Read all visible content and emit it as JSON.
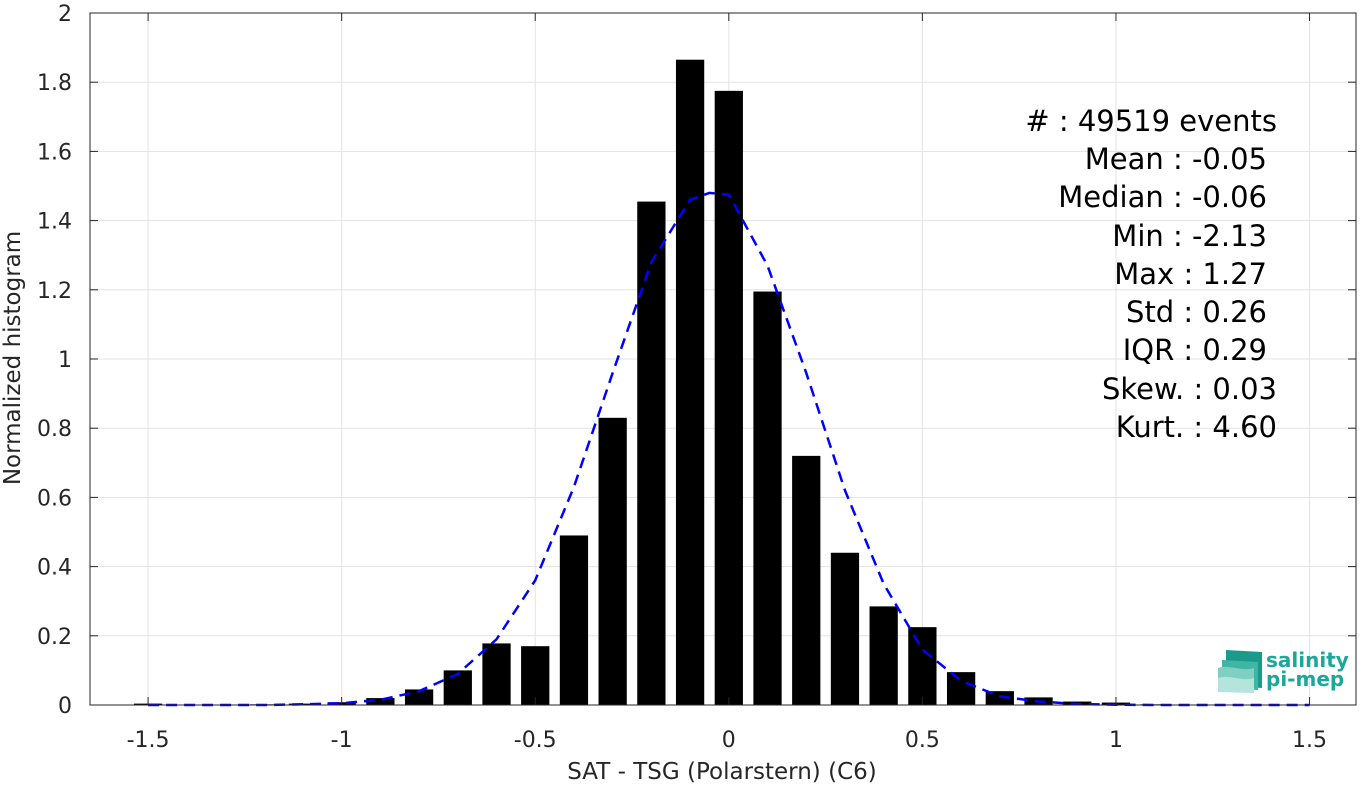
{
  "chart_data": {
    "type": "bar",
    "xlabel": "SAT - TSG (Polarstern) (C6)",
    "ylabel": "Normalized histogram",
    "xlim": [
      -1.65,
      1.62
    ],
    "ylim": [
      0,
      2
    ],
    "xticks": [
      -1.5,
      -1,
      -0.5,
      0,
      0.5,
      1,
      1.5
    ],
    "xtick_labels": [
      "-1.5",
      "-1",
      "-0.5",
      "0",
      "0.5",
      "1",
      "1.5"
    ],
    "yticks": [
      0,
      0.2,
      0.4,
      0.6,
      0.8,
      1,
      1.2,
      1.4,
      1.6,
      1.8,
      2
    ],
    "ytick_labels": [
      "0",
      "0.2",
      "0.4",
      "0.6",
      "0.8",
      "1",
      "1.2",
      "1.4",
      "1.6",
      "1.8",
      "2"
    ],
    "grid": true,
    "bar_width": 0.073,
    "bar_color": "#000000",
    "x": [
      -1.5,
      -1.4,
      -1.3,
      -1.2,
      -1.1,
      -1.0,
      -0.9,
      -0.8,
      -0.7,
      -0.6,
      -0.5,
      -0.4,
      -0.3,
      -0.2,
      -0.1,
      0.0,
      0.1,
      0.2,
      0.3,
      0.4,
      0.5,
      0.6,
      0.7,
      0.8,
      0.9,
      1.0,
      1.1,
      1.2,
      1.3,
      1.4,
      1.5
    ],
    "values": [
      0.004,
      0.0,
      0.0,
      0.002,
      0.004,
      0.008,
      0.02,
      0.045,
      0.1,
      0.178,
      0.17,
      0.49,
      0.83,
      1.455,
      1.865,
      1.775,
      1.195,
      0.72,
      0.44,
      0.285,
      0.225,
      0.095,
      0.04,
      0.022,
      0.01,
      0.007,
      0.002,
      0.0,
      0.0,
      0.0,
      0.0
    ],
    "fit_curve": {
      "color": "#0000ff",
      "style": "dashed",
      "x": [
        -1.5,
        -1.4,
        -1.3,
        -1.2,
        -1.1,
        -1.0,
        -0.9,
        -0.8,
        -0.7,
        -0.6,
        -0.5,
        -0.4,
        -0.3,
        -0.2,
        -0.1,
        -0.05,
        0.0,
        0.1,
        0.2,
        0.3,
        0.4,
        0.5,
        0.6,
        0.7,
        0.8,
        0.9,
        1.0,
        1.1,
        1.2,
        1.3,
        1.4,
        1.5
      ],
      "y": [
        0.0,
        0.0,
        0.0,
        0.0,
        0.002,
        0.005,
        0.015,
        0.04,
        0.09,
        0.19,
        0.36,
        0.63,
        0.96,
        1.28,
        1.46,
        1.48,
        1.475,
        1.27,
        0.96,
        0.62,
        0.35,
        0.16,
        0.07,
        0.025,
        0.01,
        0.003,
        0.001,
        0.0,
        0.0,
        0.0,
        0.0,
        0.0
      ]
    }
  },
  "stats": [
    {
      "label": "#  : 49519 events"
    },
    {
      "label": "Mean : -0.05"
    },
    {
      "label": "Median : -0.06"
    },
    {
      "label": "Min : -2.13"
    },
    {
      "label": "Max : 1.27"
    },
    {
      "label": "Std : 0.26"
    },
    {
      "label": "IQR : 0.29"
    },
    {
      "label": "Skew. : 0.03"
    },
    {
      "label": "Kurt. : 4.60"
    }
  ],
  "logo": {
    "line1": "salinity",
    "line2": "pi-mep",
    "color": "#1aa89a"
  }
}
